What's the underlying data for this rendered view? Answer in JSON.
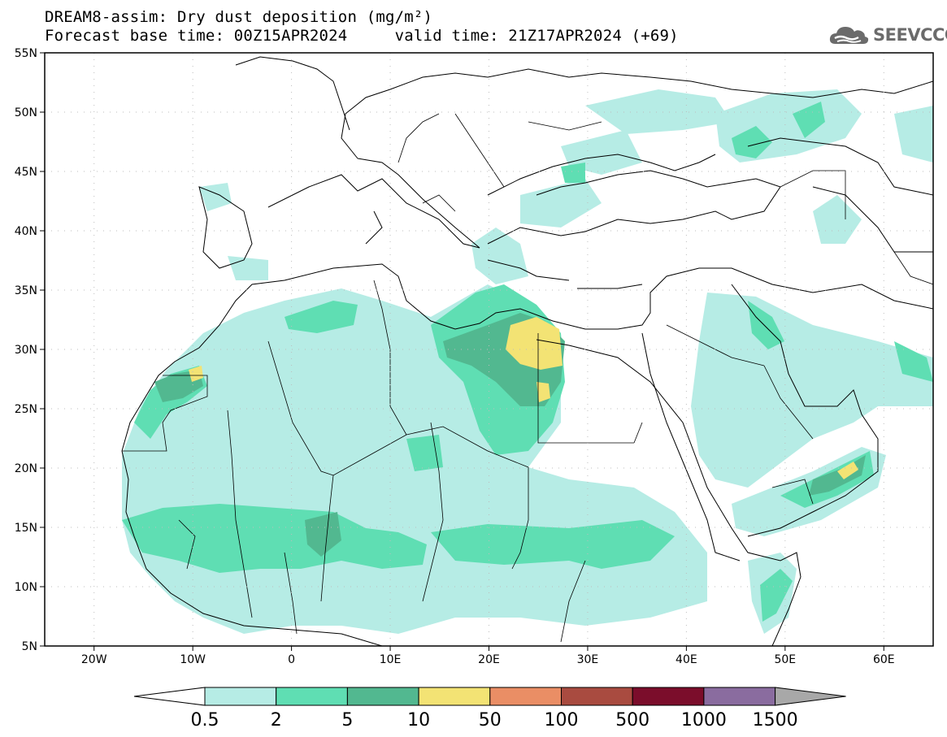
{
  "title": {
    "line1": "DREAM8-assim: Dry dust deposition (mg/m²)",
    "line2": "Forecast base time: 00Z15APR2024     valid time: 21Z17APR2024 (+69)"
  },
  "logo": {
    "text": "SEEVCCC",
    "icon": "cloud-logo-icon"
  },
  "map": {
    "lat_range": [
      5,
      55
    ],
    "lon_range": [
      -25,
      65
    ],
    "lat_ticks": [
      "55N",
      "50N",
      "45N",
      "40N",
      "35N",
      "30N",
      "25N",
      "20N",
      "15N",
      "10N",
      "5N"
    ],
    "lon_ticks": [
      "20W",
      "10W",
      "0",
      "10E",
      "20E",
      "30E",
      "40E",
      "50E",
      "60E"
    ],
    "colors": {
      "c1": "#b6ece5",
      "c2": "#5fdeb3",
      "c3": "#52b890",
      "c4": "#f3e374",
      "land": "#ffffff",
      "lines": "#000000"
    }
  },
  "colorbar": {
    "labels": [
      "0.5",
      "2",
      "5",
      "10",
      "50",
      "100",
      "500",
      "1000",
      "1500"
    ],
    "colors": [
      "#b6ece5",
      "#5fdeb3",
      "#52b890",
      "#f3e374",
      "#ea8e65",
      "#a94b40",
      "#7b0d2b",
      "#8a6c9f"
    ],
    "under_color": "#ffffff",
    "over_color": "#a8a8a8"
  }
}
